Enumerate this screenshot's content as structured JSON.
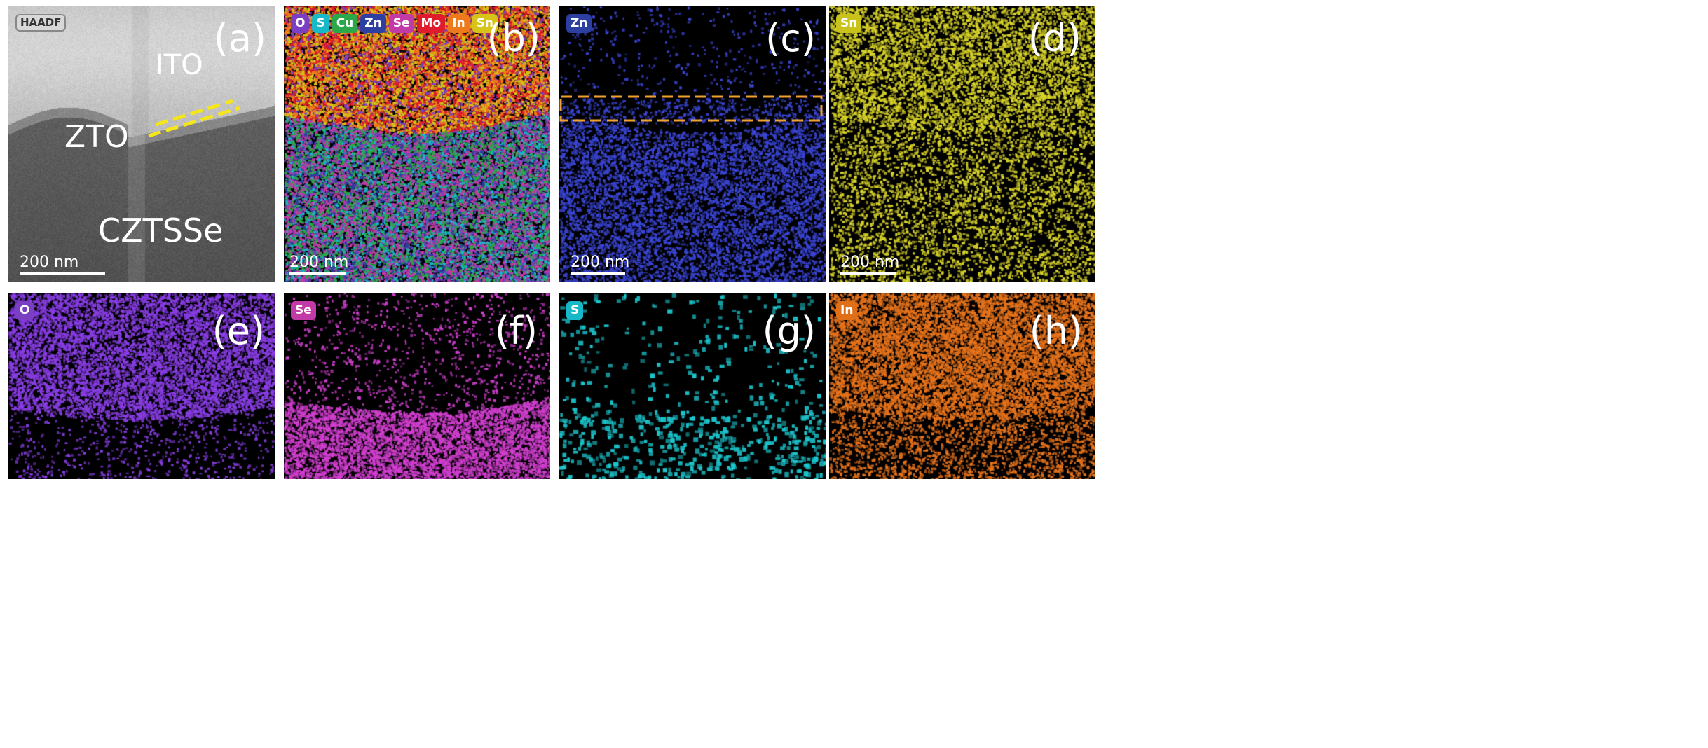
{
  "panels": {
    "a": {
      "label": "(a)",
      "badge": "HAADF",
      "scale": "200 nm",
      "regions": {
        "ito": "ITO",
        "zto": "ZTO",
        "czts": "CZTSSe"
      }
    },
    "b": {
      "label": "(b)",
      "scale": "200 nm",
      "elements": [
        {
          "symbol": "O",
          "color": "#7b3fc4"
        },
        {
          "symbol": "S",
          "color": "#17b8c8"
        },
        {
          "symbol": "Cu",
          "color": "#2aa84a"
        },
        {
          "symbol": "Zn",
          "color": "#2d3fa0"
        },
        {
          "symbol": "Se",
          "color": "#c23aa6"
        },
        {
          "symbol": "Mo",
          "color": "#e01b2c"
        },
        {
          "symbol": "In",
          "color": "#ee7a1c"
        },
        {
          "symbol": "Sn",
          "color": "#d6c418"
        }
      ]
    },
    "c": {
      "label": "(c)",
      "element": "Zn",
      "color": "#3b46d6",
      "scale": "200 nm"
    },
    "d": {
      "label": "(d)",
      "element": "Sn",
      "color": "#d9d42a",
      "scale": "200 nm"
    },
    "e": {
      "label": "(e)",
      "element": "O",
      "color": "#8a3ee6"
    },
    "f": {
      "label": "(f)",
      "element": "Se",
      "color": "#d23fd0"
    },
    "g": {
      "label": "(g)",
      "element": "S",
      "color": "#1cc7cf"
    },
    "h": {
      "label": "(h)",
      "element": "In",
      "color": "#e8741c"
    }
  }
}
